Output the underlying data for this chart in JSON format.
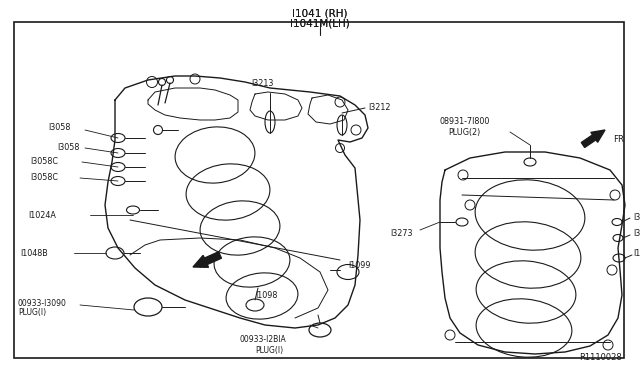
{
  "bg_color": "#ffffff",
  "line_color": "#1a1a1a",
  "text_color": "#1a1a1a",
  "title1": "I1041 (RH)",
  "title2": "I1041M(LH)",
  "ref_number": "R1110028",
  "figsize": [
    6.4,
    3.72
  ],
  "dpi": 100
}
